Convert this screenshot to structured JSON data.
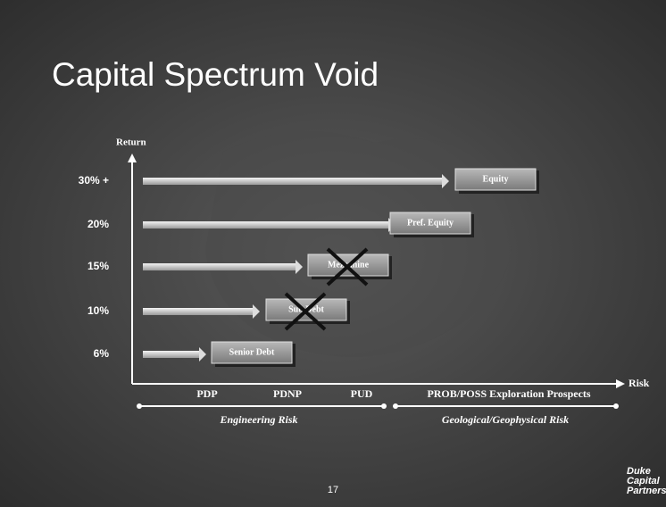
{
  "title": "Capital Spectrum Void",
  "y_axis_label": "Return",
  "x_axis_label": "Risk",
  "rows": [
    {
      "return": "30% +",
      "instrument": "Equity"
    },
    {
      "return": "20%",
      "instrument": "Pref. Equity"
    },
    {
      "return": "15%",
      "instrument": "Mezzanine"
    },
    {
      "return": "10%",
      "instrument": "Sub Debt"
    },
    {
      "return": "6%",
      "instrument": "Senior Debt"
    }
  ],
  "risk_categories": [
    "PDP",
    "PDNP",
    "PUD",
    "PROB/POSS  Exploration Prospects"
  ],
  "risk_groups": [
    "Engineering Risk",
    "Geological/Geophysical Risk"
  ],
  "page_number": "17",
  "logo": [
    "Duke",
    "Capital",
    "Partners"
  ]
}
